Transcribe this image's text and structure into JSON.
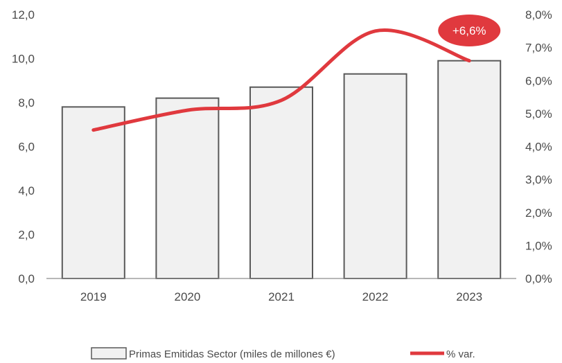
{
  "chart_data": {
    "type": "bar",
    "categories": [
      "2019",
      "2020",
      "2021",
      "2022",
      "2023"
    ],
    "series": [
      {
        "name": "Primas Emitidas Sector (miles de millones €)",
        "type": "bar",
        "axis": "left",
        "values": [
          7.8,
          8.2,
          8.7,
          9.3,
          9.9
        ]
      },
      {
        "name": "% var.",
        "type": "line",
        "axis": "right",
        "values": [
          4.5,
          5.1,
          5.4,
          7.5,
          6.6
        ]
      }
    ],
    "y_left": {
      "min": 0,
      "max": 12,
      "ticks": [
        "0,0",
        "2,0",
        "4,0",
        "6,0",
        "8,0",
        "10,0",
        "12,0"
      ]
    },
    "y_right": {
      "min": 0,
      "max": 8,
      "ticks": [
        "0,0%",
        "1,0%",
        "2,0%",
        "3,0%",
        "4,0%",
        "5,0%",
        "6,0%",
        "7,0%",
        "8,0%"
      ]
    },
    "annotation": {
      "text": "+6,6%",
      "category": "2023",
      "color": "#e0393e"
    },
    "grid": false,
    "legend_position": "bottom",
    "colors": {
      "bar_fill": "#f1f1f1",
      "bar_stroke": "#595959",
      "line": "#e0393e",
      "axis": "#8c8c8c"
    }
  }
}
